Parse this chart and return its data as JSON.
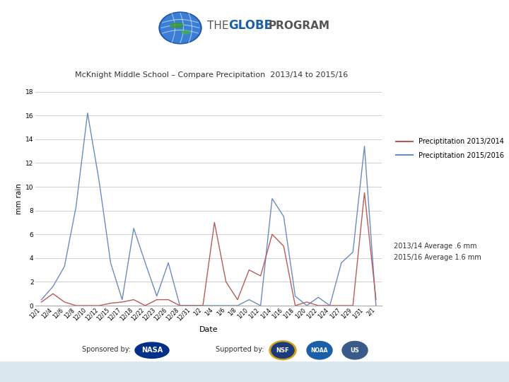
{
  "title": "McKnight Middle School – Compare Precipitation  2013/14 to 2015/16",
  "ylabel": "mm rain",
  "xlabel": "Date",
  "ylim": [
    0,
    18
  ],
  "yticks": [
    0,
    2,
    4,
    6,
    8,
    10,
    12,
    14,
    16,
    18
  ],
  "legend_label_2013": "Preciptitation 2013/2014",
  "legend_label_2015": "Preciptitation 2015/2016",
  "avg_text_line1": "2013/14 Average .6 mm",
  "avg_text_line2": "2015/16 Average 1.6 mm",
  "color_2013": "#b85c58",
  "color_2015": "#6b8cbe",
  "background_color": "#ffffff",
  "plot_bg": "#ffffff",
  "grid_color": "#d0d0d0",
  "x_labels": [
    "12/1",
    "12/4",
    "12/6",
    "12/8",
    "12/10",
    "12/12",
    "12/15",
    "12/17",
    "12/18",
    "12/22",
    "12/23",
    "12/26",
    "12/28",
    "12/31",
    "1/2",
    "1/4",
    "1/6",
    "1/8",
    "1/10",
    "1/12",
    "1/14",
    "1/16",
    "1/18",
    "1/20",
    "1/22",
    "1/24",
    "1/27",
    "1/29",
    "1/31",
    "2/1"
  ],
  "data_2013": [
    0.3,
    1.0,
    0.3,
    0.0,
    0.0,
    0.0,
    0.2,
    0.3,
    0.5,
    0.0,
    0.5,
    0.5,
    0.0,
    0.0,
    0.0,
    7.0,
    2.0,
    0.5,
    3.0,
    2.5,
    6.0,
    5.0,
    0.0,
    0.3,
    0.0,
    0.0,
    0.0,
    0.0,
    9.5,
    0.5
  ],
  "data_2015": [
    0.5,
    1.6,
    3.3,
    8.3,
    16.2,
    10.5,
    3.6,
    0.5,
    6.5,
    3.6,
    0.8,
    3.6,
    0.0,
    0.0,
    0.0,
    0.0,
    0.0,
    0.0,
    0.5,
    0.0,
    9.0,
    7.5,
    0.8,
    0.0,
    0.7,
    0.0,
    3.6,
    4.5,
    13.4,
    0.0
  ],
  "globe_text_the": "THE",
  "globe_text_globe": "GLOBE",
  "globe_text_program": "PROGRAM",
  "globe_color_the": "#555555",
  "globe_color_globe": "#1a5fa8",
  "globe_color_program": "#555555",
  "sponsor_text": "Sponsored by:",
  "support_text": "Supported by:",
  "bottom_bg": "#dce8f0",
  "fig_width": 7.2,
  "fig_height": 5.4,
  "dpi": 100
}
